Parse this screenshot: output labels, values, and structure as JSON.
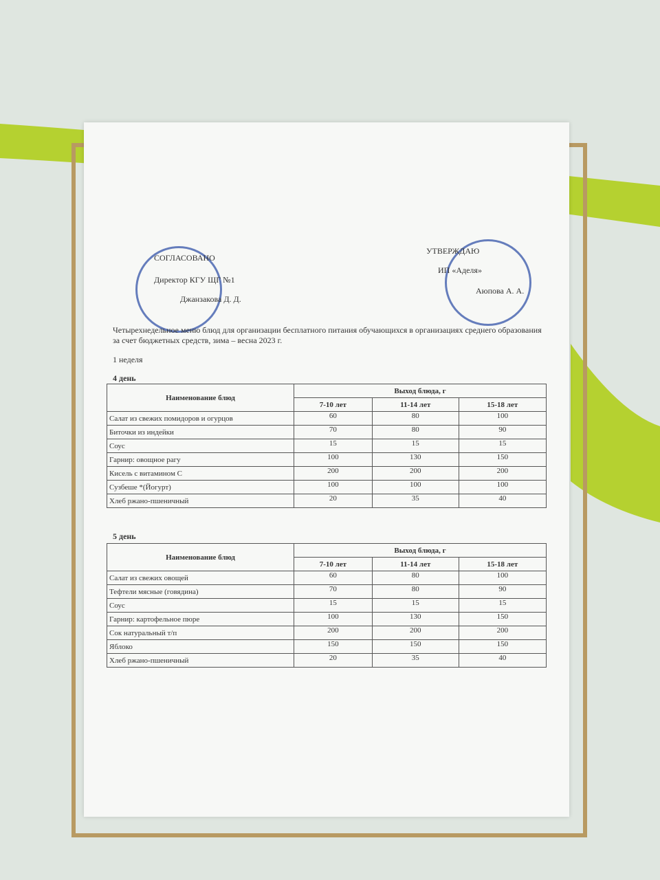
{
  "approval": {
    "left": {
      "heading": "СОГЛАСОВАНО",
      "position": "Директор КГУ ЩГ №1",
      "name": "Джанзакова Д. Д."
    },
    "right": {
      "heading": "УТВЕРЖДАЮ",
      "position": "ИП «Аделя»",
      "name": "Аюпова А. А."
    }
  },
  "title": "Четырехнедельное меню блюд для организации бесплатного питания обучающихся в организациях среднего образования за счет бюджетных средств, зима – весна 2023 г.",
  "week": "1 неделя",
  "days": [
    {
      "label": "4 день",
      "table": {
        "header": {
          "dish": "Наименование блюд",
          "output": "Выход блюда, г",
          "ages": [
            "7-10 лет",
            "11-14 лет",
            "15-18 лет"
          ]
        },
        "rows": [
          [
            "Салат из свежих помидоров и огурцов",
            60,
            80,
            100
          ],
          [
            "Биточки из индейки",
            70,
            80,
            90
          ],
          [
            "Соус",
            15,
            15,
            15
          ],
          [
            "Гарнир: овощное рагу",
            100,
            130,
            150
          ],
          [
            "Кисель с витамином С",
            200,
            200,
            200
          ],
          [
            "Сузбеше *(Йогурт)",
            100,
            100,
            100
          ],
          [
            "Хлеб ржано-пшеничный",
            20,
            35,
            40
          ]
        ]
      }
    },
    {
      "label": "5 день",
      "table": {
        "header": {
          "dish": "Наименование блюд",
          "output": "Выход блюда, г",
          "ages": [
            "7-10 лет",
            "11-14 лет",
            "15-18 лет"
          ]
        },
        "rows": [
          [
            "Салат из свежих овощей",
            60,
            80,
            100
          ],
          [
            "Тефтели мясные (говядина)",
            70,
            80,
            90
          ],
          [
            "Соус",
            15,
            15,
            15
          ],
          [
            "Гарнир:  картофельное пюре",
            100,
            130,
            150
          ],
          [
            "Сок натуральный т/п",
            200,
            200,
            200
          ],
          [
            "Яблоко",
            150,
            150,
            150
          ],
          [
            "Хлеб ржано-пшеничный",
            20,
            35,
            40
          ]
        ]
      }
    }
  ]
}
